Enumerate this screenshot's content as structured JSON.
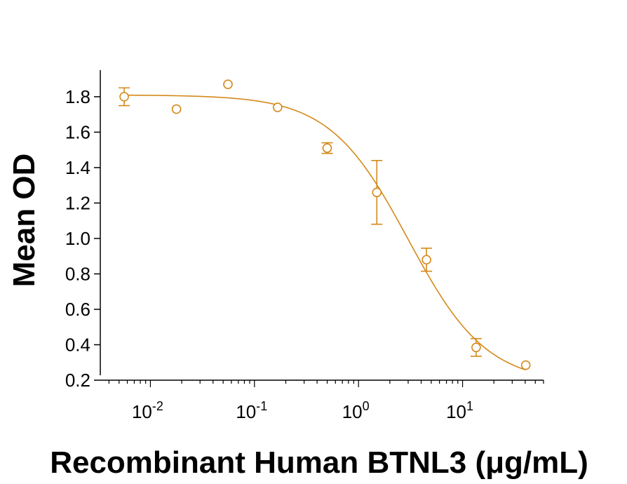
{
  "chart_data": {
    "type": "scatter",
    "title": "",
    "xlabel": "Recombinant Human BTNL3 (μg/mL)",
    "ylabel": "Mean OD",
    "x_scale": "log",
    "x_ticks": [
      {
        "value": 0.01,
        "base": "10",
        "exp": "-2"
      },
      {
        "value": 0.1,
        "base": "10",
        "exp": "-1"
      },
      {
        "value": 1,
        "base": "10",
        "exp": "0"
      },
      {
        "value": 10,
        "base": "10",
        "exp": "1"
      }
    ],
    "y_ticks": [
      "0.2",
      "0.4",
      "0.6",
      "0.8",
      "1.0",
      "1.2",
      "1.4",
      "1.6",
      "1.8"
    ],
    "xlim": [
      0.0033,
      60
    ],
    "ylim": [
      0.2,
      1.95
    ],
    "grid": false,
    "legend": "none",
    "color": "#D4891A",
    "series": [
      {
        "points": [
          {
            "x": 0.0056,
            "y": 1.8,
            "err": 0.05
          },
          {
            "x": 0.0178,
            "y": 1.73,
            "err": 0
          },
          {
            "x": 0.0556,
            "y": 1.87,
            "err": 0
          },
          {
            "x": 0.167,
            "y": 1.74,
            "err": 0
          },
          {
            "x": 0.5,
            "y": 1.51,
            "err": 0.03
          },
          {
            "x": 1.5,
            "y": 1.26,
            "err": 0.18
          },
          {
            "x": 4.5,
            "y": 0.88,
            "err": 0.065
          },
          {
            "x": 13.5,
            "y": 0.385,
            "err": 0.05
          },
          {
            "x": 40.5,
            "y": 0.285,
            "err": 0
          }
        ]
      }
    ],
    "fit": {
      "model": "4PL",
      "top": 1.81,
      "bottom": 0.18,
      "ec50": 3.0,
      "hill": 1.15
    }
  }
}
